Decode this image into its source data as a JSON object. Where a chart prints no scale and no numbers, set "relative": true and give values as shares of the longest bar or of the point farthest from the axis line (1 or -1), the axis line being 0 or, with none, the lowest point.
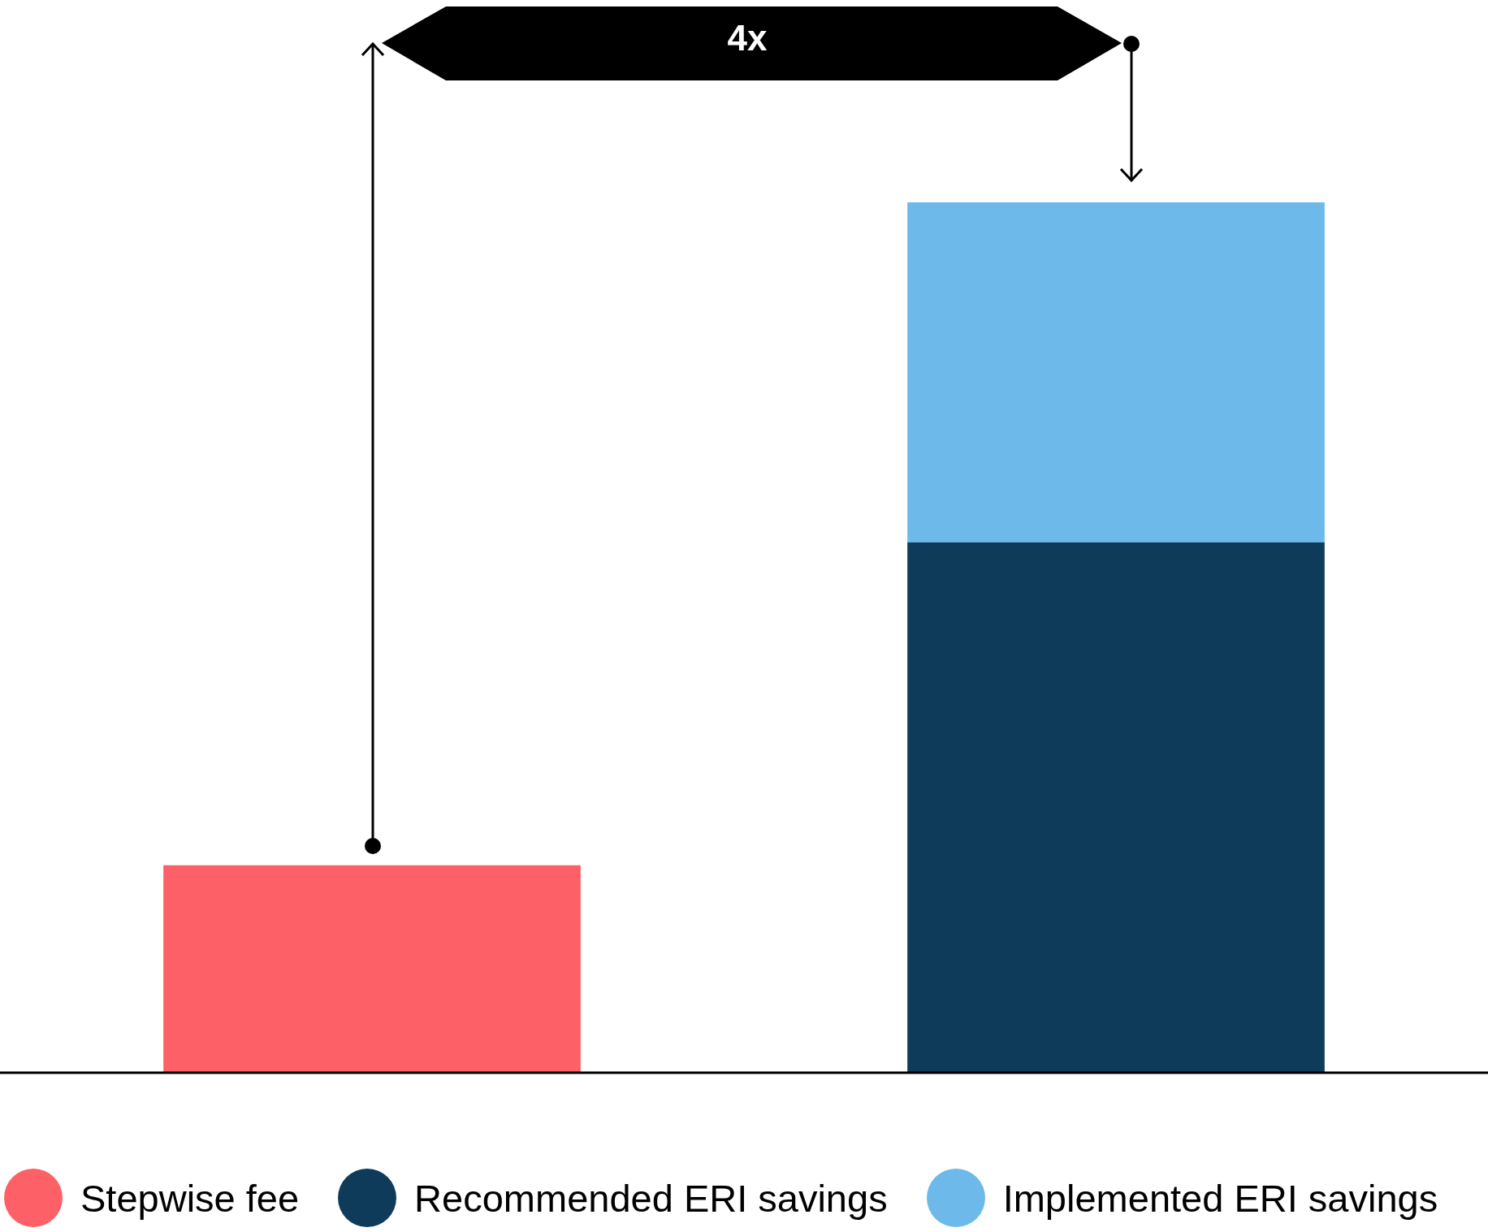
{
  "chart_data": {
    "type": "bar",
    "relative": true,
    "stacked": true,
    "legend": "bottom",
    "categories": [
      null,
      null
    ],
    "series": [
      {
        "name": "Stepwise fee",
        "color": "#fe6067",
        "values": [
          0.238,
          null
        ]
      },
      {
        "name": "Recommended ERI savings",
        "color": "#0f3b5a",
        "values": [
          null,
          0.609
        ]
      },
      {
        "name": "Implemented ERI savings",
        "color": "#6cb9ea",
        "values": [
          null,
          0.391
        ]
      }
    ],
    "annotations": [
      "4x"
    ]
  }
}
